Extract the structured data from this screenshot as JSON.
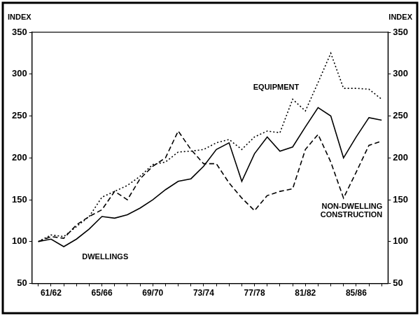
{
  "chart_data": {
    "type": "line",
    "categories": [
      null,
      "61/62",
      null,
      null,
      null,
      "65/66",
      null,
      null,
      null,
      "69/70",
      null,
      null,
      null,
      "73/74",
      null,
      null,
      null,
      "77/78",
      null,
      null,
      null,
      "81/82",
      null,
      null,
      null,
      "85/86",
      null,
      null
    ],
    "series": [
      {
        "name": "DWELLINGS",
        "color": "#000000",
        "line_style": "solid",
        "values": [
          100,
          103,
          94,
          103,
          115,
          130,
          128,
          132,
          140,
          150,
          162,
          172,
          175,
          190,
          210,
          218,
          172,
          205,
          225,
          208,
          213,
          237,
          260,
          250,
          200,
          225,
          248,
          245
        ]
      },
      {
        "name": "EQUIPMENT",
        "color": "#000000",
        "line_style": "dotted",
        "values": [
          100,
          108,
          106,
          118,
          130,
          153,
          160,
          167,
          178,
          192,
          195,
          207,
          208,
          210,
          218,
          222,
          210,
          225,
          232,
          230,
          270,
          256,
          290,
          325,
          283,
          283,
          282,
          270
        ]
      },
      {
        "name": "NON-DWELLING CONSTRUCTION",
        "color": "#000000",
        "line_style": "dashed",
        "values": [
          100,
          106,
          104,
          120,
          130,
          138,
          160,
          150,
          175,
          190,
          200,
          232,
          210,
          193,
          193,
          170,
          152,
          137,
          155,
          160,
          163,
          210,
          228,
          195,
          152,
          183,
          215,
          220
        ]
      }
    ],
    "y_label": "INDEX",
    "y2_label": "INDEX",
    "ylim": [
      50,
      350
    ],
    "yticks": [
      50,
      100,
      150,
      200,
      250,
      300,
      350
    ],
    "y2lim": [
      50,
      350
    ],
    "y2ticks": [
      50,
      100,
      150,
      200,
      250,
      300,
      350
    ],
    "grid": false
  }
}
